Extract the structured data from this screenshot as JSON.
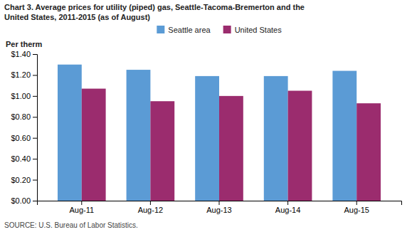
{
  "chart_data": {
    "type": "bar",
    "title": "Chart 3. Average prices for utility (piped) gas, Seattle-Tacoma-Bremerton and the\nUnited States, 2011-2015  (as of August)",
    "ylabel": "Per therm",
    "source": "SOURCE: U.S. Bureau of Labor Statistics.",
    "categories": [
      "Aug-11",
      "Aug-12",
      "Aug-13",
      "Aug-14",
      "Aug-15"
    ],
    "series": [
      {
        "name": "Seattle area",
        "color": "#5B9BD5",
        "values": [
          1.3,
          1.25,
          1.19,
          1.19,
          1.24
        ]
      },
      {
        "name": "United States",
        "color": "#9B2C6E",
        "values": [
          1.07,
          0.95,
          1.0,
          1.05,
          0.93
        ]
      }
    ],
    "ylim": [
      0.0,
      1.4
    ],
    "yticks": [
      {
        "value": 0.0,
        "label": "$0.00"
      },
      {
        "value": 0.2,
        "label": "$0.20"
      },
      {
        "value": 0.4,
        "label": "$0.40"
      },
      {
        "value": 0.6,
        "label": "$0.60"
      },
      {
        "value": 0.8,
        "label": "$0.80"
      },
      {
        "value": 1.0,
        "label": "$1.00"
      },
      {
        "value": 1.2,
        "label": "$1.20"
      },
      {
        "value": 1.4,
        "label": "$1.40"
      }
    ],
    "legend": "upper center",
    "grid": false
  }
}
